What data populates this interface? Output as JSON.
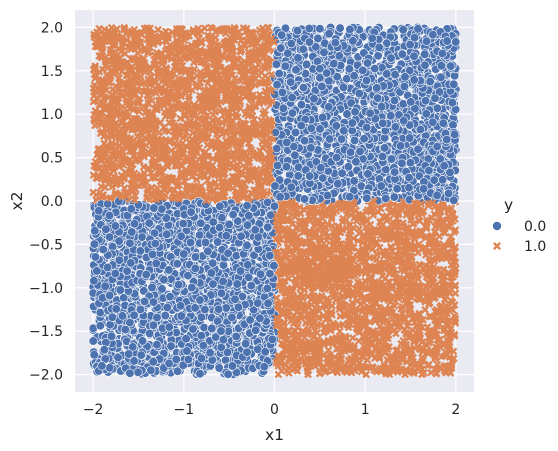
{
  "chart_data": {
    "type": "scatter",
    "title": "",
    "xlabel": "x1",
    "ylabel": "x2",
    "xlim": [
      -2.2,
      2.2
    ],
    "ylim": [
      -2.2,
      2.2
    ],
    "xticks": [
      -2,
      -1,
      0,
      1,
      2
    ],
    "yticks": [
      -2.0,
      -1.5,
      -1.0,
      -0.5,
      0.0,
      0.5,
      1.0,
      1.5,
      2.0
    ],
    "xtick_labels": [
      "−2",
      "−1",
      "0",
      "1",
      "2"
    ],
    "ytick_labels": [
      "−2.0",
      "−1.5",
      "−1.0",
      "−0.5",
      "0.0",
      "0.5",
      "1.0",
      "1.5",
      "2.0"
    ],
    "grid": true,
    "background": "#eaeaf2",
    "legend": {
      "title": "y",
      "placement": "right",
      "entries": [
        {
          "label": "0.0",
          "marker": "circle",
          "color": "#4c72b0"
        },
        {
          "label": "1.0",
          "marker": "x",
          "color": "#dd8452"
        }
      ]
    },
    "series": [
      {
        "name": "0.0",
        "marker": "circle",
        "color": "#4c72b0",
        "description": "uniform random points where sign(x1) == sign(x2)",
        "regions": [
          {
            "x": [
              0,
              2
            ],
            "y": [
              0,
              2
            ]
          },
          {
            "x": [
              -2,
              0
            ],
            "y": [
              -2,
              0
            ]
          }
        ],
        "approx_points": 4000
      },
      {
        "name": "1.0",
        "marker": "x",
        "color": "#dd8452",
        "description": "uniform random points where sign(x1) != sign(x2)",
        "regions": [
          {
            "x": [
              -2,
              0
            ],
            "y": [
              0,
              2
            ]
          },
          {
            "x": [
              0,
              2
            ],
            "y": [
              -2,
              0
            ]
          }
        ],
        "approx_points": 4000
      }
    ]
  }
}
